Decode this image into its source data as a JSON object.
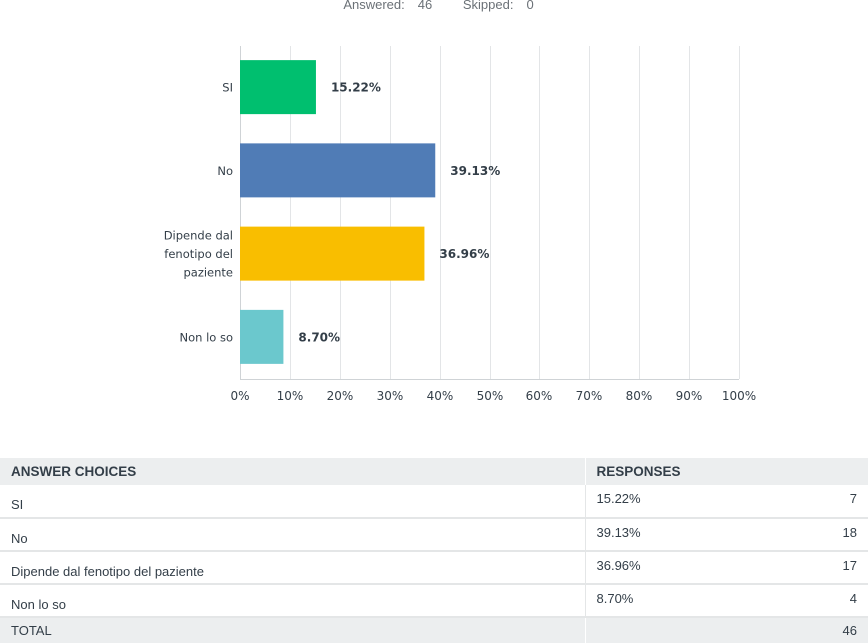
{
  "summary": {
    "answered_label": "Answered:",
    "answered_value": "46",
    "skipped_label": "Skipped:",
    "skipped_value": "0"
  },
  "chart_data": {
    "type": "bar",
    "orientation": "horizontal",
    "categories": [
      [
        "SI"
      ],
      [
        "No"
      ],
      [
        "Dipende dal",
        "fenotipo del",
        "paziente"
      ],
      [
        "Non lo so"
      ]
    ],
    "values": [
      15.22,
      39.13,
      36.96,
      8.7
    ],
    "value_labels": [
      "15.22%",
      "39.13%",
      "36.96%",
      "8.70%"
    ],
    "colors": [
      "#00bf6f",
      "#507cb6",
      "#f9be00",
      "#6bc8cd"
    ],
    "xlim": [
      0,
      100
    ],
    "x_ticks": [
      "0%",
      "10%",
      "20%",
      "30%",
      "40%",
      "50%",
      "60%",
      "70%",
      "80%",
      "90%",
      "100%"
    ],
    "grid": true,
    "title": "",
    "xlabel": "",
    "ylabel": ""
  },
  "table": {
    "headers": {
      "choices": "ANSWER CHOICES",
      "responses": "RESPONSES"
    },
    "rows": [
      {
        "choice": "SI",
        "percent": "15.22%",
        "count": "7"
      },
      {
        "choice": "No",
        "percent": "39.13%",
        "count": "18"
      },
      {
        "choice": "Dipende dal fenotipo del paziente",
        "percent": "36.96%",
        "count": "17"
      },
      {
        "choice": "Non lo so",
        "percent": "8.70%",
        "count": "4"
      }
    ],
    "total": {
      "label": "TOTAL",
      "count": "46"
    }
  }
}
